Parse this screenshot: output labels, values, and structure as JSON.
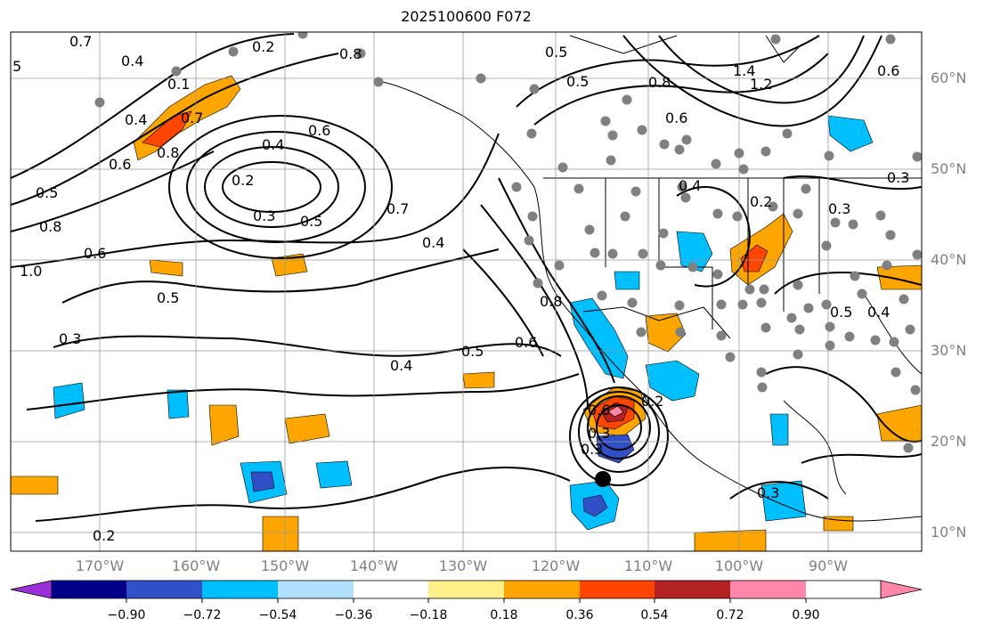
{
  "title": "2025100600 F072",
  "lat_labels": [
    "60°N",
    "50°N",
    "40°N",
    "30°N",
    "20°N",
    "10°N"
  ],
  "lon_labels": [
    "170°W",
    "160°W",
    "150°W",
    "140°W",
    "130°W",
    "120°W",
    "110°W",
    "100°W",
    "90°W"
  ],
  "colorbar": {
    "colors": [
      "#9b30d6",
      "#00008b",
      "#3050c8",
      "#00bfff",
      "#b0e2ff",
      "#ffffff",
      "#fff08a",
      "#ffa500",
      "#ff4500",
      "#b22222",
      "#ff88aa"
    ],
    "tick_labels": [
      "−0.90",
      "−0.72",
      "−0.54",
      "−0.36",
      "−0.18",
      "0.18",
      "0.36",
      "0.54",
      "0.72",
      "0.90"
    ]
  },
  "contour_labels": [
    "0.7",
    "0.2",
    "0.5",
    "0.8",
    "0.5",
    "1.4",
    "1.2",
    "0.6",
    "0.4",
    "0.8",
    "0.6",
    "0.8",
    "0.6",
    "0.4",
    "0.2",
    "0.3",
    "0.5",
    "0.6",
    "0.5",
    "0.8",
    "0.6",
    "1.0",
    "0.5",
    "0.7",
    "0.4",
    "0.4",
    "0.8",
    "0.6",
    "0.5",
    "0.4",
    "0.3",
    "0.3",
    "0.2",
    "0.5",
    "0.2",
    "0.6",
    "0.3",
    "0.3",
    "0.4",
    "0.2",
    "0.3",
    "0.3",
    "5",
    "0.4",
    "0.1",
    "0.7"
  ]
}
